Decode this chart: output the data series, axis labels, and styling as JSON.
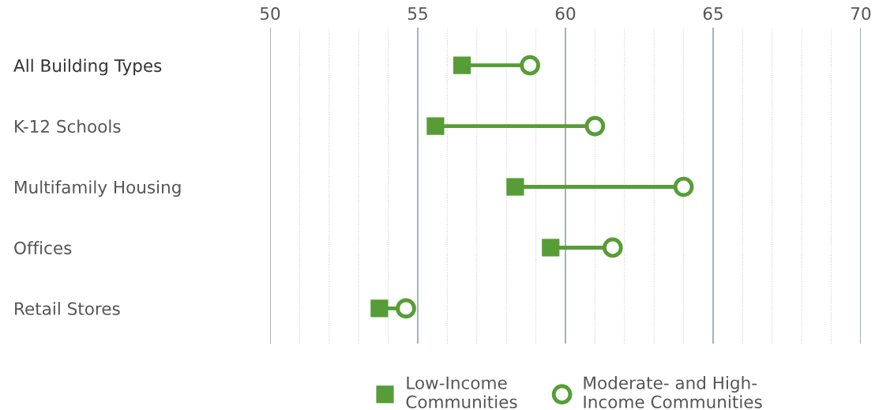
{
  "chart_data": {
    "type": "scatter",
    "orientation": "horizontal",
    "categories": [
      "All Building Types",
      "K-12 Schools",
      "Multifamily Housing",
      "Offices",
      "Retail Stores"
    ],
    "series": [
      {
        "name": "Low-Income\nCommunities",
        "color": "#579d37",
        "marker": "square",
        "values": [
          56.5,
          55.6,
          58.3,
          59.5,
          53.7
        ]
      },
      {
        "name": "Moderate- and High-\nIncome Communities",
        "color": "#579d37",
        "marker": "circle",
        "values": [
          58.8,
          61.0,
          64.0,
          61.6,
          54.6
        ]
      }
    ],
    "xlim": [
      50,
      70
    ],
    "xticks": [
      50,
      {
        "value": 51,
        "label": null
      },
      {
        "value": 52,
        "label": null
      },
      {
        "value": 53,
        "label": null
      },
      {
        "value": 54,
        "label": null
      },
      55,
      {
        "value": 56,
        "label": null
      },
      {
        "value": 57,
        "label": null
      },
      {
        "value": 58,
        "label": null
      },
      {
        "value": 59,
        "label": null
      },
      60,
      {
        "value": 61,
        "label": null
      },
      {
        "value": 62,
        "label": null
      },
      {
        "value": 63,
        "label": null
      },
      {
        "value": 64,
        "label": null
      },
      65,
      {
        "value": 66,
        "label": null
      },
      {
        "value": 67,
        "label": null
      },
      {
        "value": 68,
        "label": null
      },
      {
        "value": 69,
        "label": null
      },
      70
    ],
    "grid": "x",
    "legend": "bottom"
  }
}
